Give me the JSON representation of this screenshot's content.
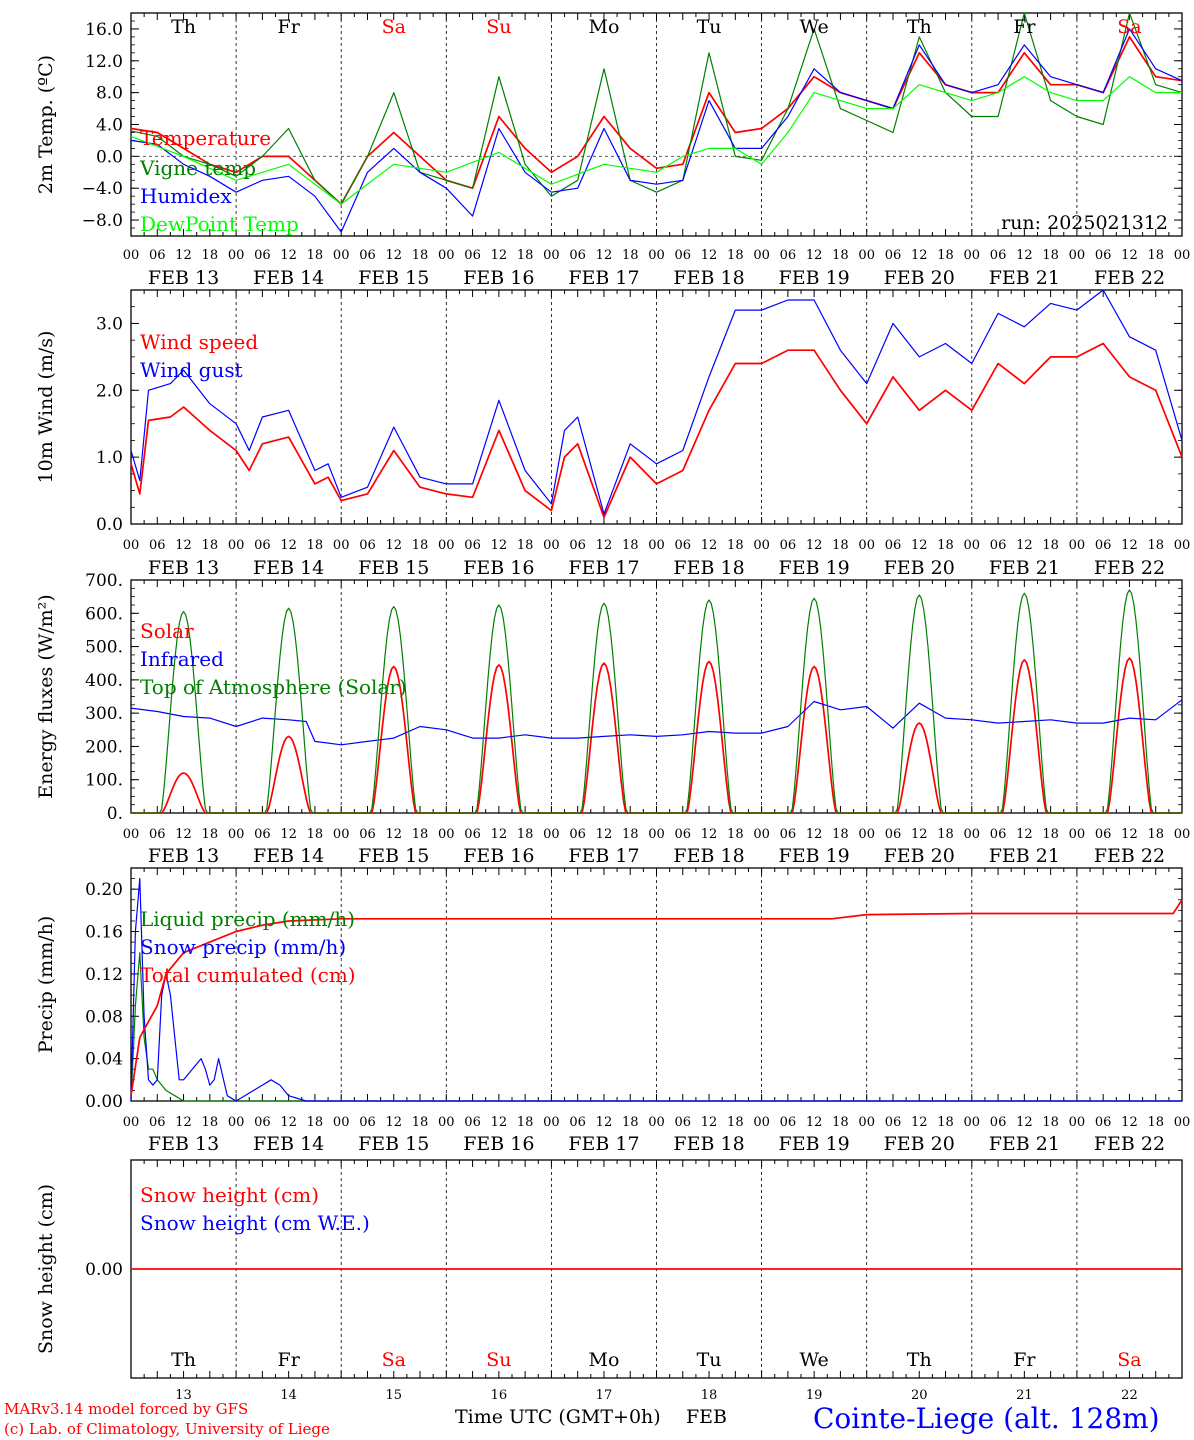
{
  "run_label": "run: 2025021312",
  "hour_ticks": [
    "00",
    "06",
    "12",
    "18"
  ],
  "final_hour_tick": "00",
  "days": [
    {
      "dow": "Th",
      "date": "FEB 13",
      "num": "13",
      "weekend": false
    },
    {
      "dow": "Fr",
      "date": "FEB 14",
      "num": "14",
      "weekend": false
    },
    {
      "dow": "Sa",
      "date": "FEB 15",
      "num": "15",
      "weekend": true
    },
    {
      "dow": "Su",
      "date": "FEB 16",
      "num": "16",
      "weekend": true
    },
    {
      "dow": "Mo",
      "date": "FEB 17",
      "num": "17",
      "weekend": false
    },
    {
      "dow": "Tu",
      "date": "FEB 18",
      "num": "18",
      "weekend": false
    },
    {
      "dow": "We",
      "date": "FEB 19",
      "num": "19",
      "weekend": false
    },
    {
      "dow": "Th",
      "date": "FEB 20",
      "num": "20",
      "weekend": false
    },
    {
      "dow": "Fr",
      "date": "FEB 21",
      "num": "21",
      "weekend": false
    },
    {
      "dow": "Sa",
      "date": "FEB 22",
      "num": "22",
      "weekend": true
    }
  ],
  "colors": {
    "red": "#ff0000",
    "blue": "#0000ff",
    "green": "#008000",
    "lime": "#00ff00",
    "black": "#000000",
    "weekend": "#ff0000"
  },
  "footer": {
    "model": "MARv3.14 model forced by GFS",
    "copyright": "(c) Lab. of Climatology, University of Liege",
    "time_label": "Time UTC (GMT+0h)",
    "month": "FEB",
    "station": "Cointe-Liege (alt. 128m)"
  },
  "chart_data": [
    {
      "type": "line",
      "ylabel": "2m Temp. (ºC)",
      "ylim": [
        -10,
        18
      ],
      "yticks": [
        16,
        12,
        8,
        4,
        0,
        -4,
        -8
      ],
      "ytick_labels": [
        "16.0",
        "12.0",
        "8.0",
        "4.0",
        "0.0",
        "−4.0",
        "−8.0"
      ],
      "zero_line": true,
      "show_day_names": true,
      "legend_position": "top-left",
      "series": [
        {
          "name": "Temperature",
          "color": "red",
          "x": [
            0,
            6,
            12,
            18,
            24,
            30,
            36,
            42,
            48,
            54,
            60,
            66,
            72,
            78,
            84,
            90,
            96,
            102,
            108,
            114,
            120,
            126,
            132,
            138,
            144,
            150,
            156,
            162,
            168,
            174,
            180,
            186,
            192,
            198,
            204,
            210,
            216,
            222,
            228,
            234,
            240
          ],
          "values": [
            3.5,
            3,
            1,
            -1,
            -2,
            0,
            0,
            -3,
            -6,
            0,
            3,
            0,
            -3,
            -4,
            5,
            1,
            -2,
            0,
            5,
            1,
            -1.5,
            -1,
            8,
            3,
            3.5,
            6,
            10,
            8,
            7,
            6,
            13,
            9,
            8,
            8,
            13,
            9,
            9,
            8,
            15,
            10,
            9.5
          ]
        },
        {
          "name": "Vigne temp",
          "color": "green",
          "x": [
            0,
            6,
            12,
            18,
            24,
            30,
            36,
            42,
            48,
            54,
            60,
            66,
            72,
            78,
            84,
            90,
            96,
            102,
            108,
            114,
            120,
            126,
            132,
            138,
            144,
            150,
            156,
            162,
            168,
            174,
            180,
            186,
            192,
            198,
            204,
            210,
            216,
            222,
            228,
            234,
            240
          ],
          "values": [
            3.2,
            2.5,
            0,
            -1,
            -2.5,
            0,
            3.5,
            -3,
            -6,
            0,
            8,
            -2,
            -3,
            -4,
            10,
            -1,
            -5,
            -3,
            11,
            -3,
            -4.5,
            -3,
            13,
            0,
            -0.5,
            6,
            16,
            6,
            4.5,
            3,
            15,
            8,
            5,
            5,
            18,
            7,
            5,
            4,
            18,
            9,
            8
          ]
        },
        {
          "name": "Humidex",
          "color": "blue",
          "x": [
            0,
            6,
            12,
            18,
            24,
            30,
            36,
            42,
            48,
            54,
            60,
            66,
            72,
            78,
            84,
            90,
            96,
            102,
            108,
            114,
            120,
            126,
            132,
            138,
            144,
            150,
            156,
            162,
            168,
            174,
            180,
            186,
            192,
            198,
            204,
            210,
            216,
            222,
            228,
            234,
            240
          ],
          "values": [
            2,
            1.5,
            -1,
            -2.5,
            -4.5,
            -3,
            -2.5,
            -5,
            -9.5,
            -2,
            1,
            -2,
            -4,
            -7.5,
            3.5,
            -2,
            -4.5,
            -4,
            3.5,
            -3,
            -3.5,
            -3,
            7,
            1,
            1,
            5,
            11,
            8,
            7,
            6,
            14,
            9,
            8,
            9,
            14,
            10,
            9,
            8,
            16,
            11,
            9.5
          ]
        },
        {
          "name": "DewPoint Temp",
          "color": "lime",
          "x": [
            0,
            12,
            24,
            36,
            48,
            60,
            72,
            84,
            96,
            108,
            120,
            126,
            132,
            138,
            144,
            150,
            156,
            162,
            168,
            174,
            180,
            186,
            192,
            198,
            204,
            210,
            216,
            222,
            228,
            234,
            240
          ],
          "values": [
            2.5,
            0,
            -3,
            -1,
            -6,
            -1,
            -2,
            0.5,
            -3.5,
            -1,
            -2,
            0,
            1,
            1,
            -1,
            3,
            8,
            7,
            6,
            6,
            9,
            8,
            7,
            8,
            10,
            8,
            7,
            7,
            10,
            8,
            8
          ]
        }
      ]
    },
    {
      "type": "line",
      "ylabel": "10m Wind (m/s)",
      "ylim": [
        0,
        3.5
      ],
      "yticks": [
        0,
        1,
        2,
        3
      ],
      "ytick_labels": [
        "0.0",
        "1.0",
        "2.0",
        "3.0"
      ],
      "zero_line": false,
      "legend_position": "top-left",
      "series": [
        {
          "name": "Wind speed",
          "color": "red",
          "x": [
            0,
            2,
            4,
            9,
            12,
            18,
            24,
            27,
            30,
            36,
            42,
            45,
            48,
            54,
            60,
            66,
            72,
            78,
            84,
            90,
            96,
            99,
            102,
            108,
            114,
            120,
            126,
            132,
            138,
            144,
            150,
            156,
            162,
            168,
            174,
            180,
            186,
            192,
            198,
            204,
            210,
            216,
            222,
            228,
            234,
            240
          ],
          "values": [
            0.9,
            0.45,
            1.55,
            1.6,
            1.75,
            1.4,
            1.1,
            0.8,
            1.2,
            1.3,
            0.6,
            0.7,
            0.35,
            0.45,
            1.1,
            0.55,
            0.45,
            0.4,
            1.4,
            0.5,
            0.2,
            1.0,
            1.2,
            0.1,
            1.0,
            0.6,
            0.8,
            1.7,
            2.4,
            2.4,
            2.6,
            2.6,
            2.0,
            1.5,
            2.2,
            1.7,
            2.0,
            1.7,
            2.4,
            2.1,
            2.5,
            2.5,
            2.7,
            2.2,
            2.0,
            1.0
          ]
        },
        {
          "name": "Wind gust",
          "color": "blue",
          "x": [
            0,
            2,
            4,
            9,
            12,
            18,
            24,
            27,
            30,
            36,
            42,
            45,
            48,
            54,
            60,
            66,
            72,
            78,
            84,
            90,
            96,
            99,
            102,
            108,
            114,
            120,
            126,
            132,
            138,
            144,
            150,
            156,
            162,
            168,
            174,
            180,
            186,
            192,
            198,
            204,
            210,
            216,
            222,
            228,
            234,
            240
          ],
          "values": [
            1.1,
            0.65,
            2.0,
            2.1,
            2.3,
            1.8,
            1.5,
            1.1,
            1.6,
            1.7,
            0.8,
            0.9,
            0.4,
            0.55,
            1.45,
            0.7,
            0.6,
            0.6,
            1.85,
            0.8,
            0.3,
            1.4,
            1.6,
            0.15,
            1.2,
            0.9,
            1.1,
            2.2,
            3.2,
            3.2,
            3.35,
            3.35,
            2.6,
            2.1,
            3.0,
            2.5,
            2.7,
            2.4,
            3.15,
            2.95,
            3.3,
            3.2,
            3.5,
            2.8,
            2.6,
            1.25
          ]
        }
      ]
    },
    {
      "type": "line",
      "ylabel": "Energy fluxes (W/m²)",
      "ylim": [
        0,
        700
      ],
      "yticks": [
        0,
        100,
        200,
        300,
        400,
        500,
        600,
        700
      ],
      "ytick_labels": [
        "0.",
        "100.",
        "200.",
        "300.",
        "400.",
        "500.",
        "600.",
        "700."
      ],
      "zero_line": false,
      "legend_position": "top-left",
      "series": [
        {
          "name": "Solar",
          "color": "red",
          "daily_peak_hour": 12,
          "daily_half_width_h": 5,
          "daily_peaks": [
            120,
            230,
            440,
            445,
            450,
            455,
            440,
            270,
            460,
            465
          ]
        },
        {
          "name": "Infrared",
          "color": "blue",
          "x": [
            0,
            6,
            12,
            18,
            24,
            30,
            36,
            40,
            42,
            48,
            54,
            60,
            66,
            72,
            78,
            84,
            90,
            96,
            102,
            108,
            114,
            120,
            126,
            132,
            138,
            144,
            150,
            156,
            162,
            168,
            174,
            180,
            186,
            192,
            198,
            204,
            210,
            216,
            222,
            228,
            234,
            240
          ],
          "values": [
            315,
            305,
            290,
            285,
            260,
            285,
            280,
            275,
            215,
            205,
            215,
            225,
            260,
            250,
            225,
            225,
            235,
            225,
            225,
            230,
            235,
            230,
            235,
            245,
            240,
            240,
            260,
            335,
            310,
            320,
            255,
            330,
            285,
            280,
            270,
            275,
            280,
            270,
            270,
            285,
            280,
            340
          ]
        },
        {
          "name": "Top of Atmosphere (Solar)",
          "color": "green",
          "daily_peak_hour": 12,
          "daily_half_width_h": 5.2,
          "daily_peaks": [
            605,
            615,
            620,
            625,
            630,
            640,
            645,
            655,
            660,
            670
          ]
        }
      ]
    },
    {
      "type": "line",
      "ylabel": "Precip (mm/h)",
      "ylim": [
        0,
        0.22
      ],
      "yticks": [
        0,
        0.04,
        0.08,
        0.12,
        0.16,
        0.2
      ],
      "ytick_labels": [
        "0.00",
        "0.04",
        "0.08",
        "0.12",
        "0.16",
        "0.20"
      ],
      "zero_line": false,
      "legend_position": "top-left",
      "series": [
        {
          "name": "Liquid precip (mm/h)",
          "color": "green",
          "x": [
            0,
            1,
            2,
            3,
            4,
            5,
            6,
            8,
            10,
            12,
            14,
            240
          ],
          "values": [
            0,
            0.09,
            0.14,
            0.06,
            0.03,
            0.03,
            0.02,
            0.01,
            0.005,
            0,
            0,
            0
          ]
        },
        {
          "name": "Snow precip (mm/h)",
          "color": "blue",
          "x": [
            0,
            1,
            2,
            3,
            4,
            5,
            6,
            7,
            8,
            9,
            10,
            11,
            12,
            14,
            16,
            17,
            18,
            19,
            20,
            22,
            24,
            28,
            30,
            32,
            34,
            36,
            40,
            240
          ],
          "values": [
            0,
            0.16,
            0.21,
            0.08,
            0.02,
            0.015,
            0.02,
            0.1,
            0.12,
            0.1,
            0.06,
            0.02,
            0.02,
            0.03,
            0.04,
            0.03,
            0.015,
            0.02,
            0.04,
            0.005,
            0,
            0.01,
            0.015,
            0.02,
            0.015,
            0.005,
            0,
            0
          ]
        },
        {
          "name": "Total cumulated (cm)",
          "color": "red",
          "x": [
            0,
            2,
            4,
            6,
            8,
            12,
            18,
            24,
            30,
            36,
            48,
            72,
            96,
            120,
            144,
            160,
            168,
            192,
            216,
            238,
            240
          ],
          "values": [
            0.005,
            0.06,
            0.075,
            0.09,
            0.12,
            0.14,
            0.15,
            0.16,
            0.166,
            0.17,
            0.172,
            0.172,
            0.172,
            0.172,
            0.172,
            0.172,
            0.176,
            0.177,
            0.177,
            0.177,
            0.19
          ]
        }
      ]
    },
    {
      "type": "line",
      "ylabel": "Snow height (cm)",
      "ylim": [
        -1,
        1
      ],
      "yticks": [
        0
      ],
      "ytick_labels": [
        "0.00"
      ],
      "zero_line": false,
      "legend_position": "top-left",
      "series": [
        {
          "name": "Snow height (cm)",
          "color": "red",
          "x": [
            0,
            240
          ],
          "values": [
            0,
            0
          ]
        },
        {
          "name": "Snow height (cm W.E.)",
          "color": "blue",
          "x": [],
          "values": []
        }
      ]
    }
  ]
}
